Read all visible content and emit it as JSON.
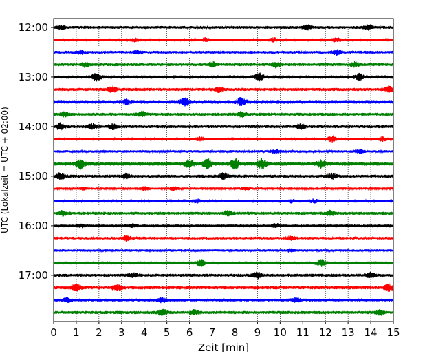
{
  "chart_data": {
    "type": "line",
    "title": "",
    "xlabel": "Zeit  [min]",
    "ylabel": "UTC (Lokalzeit = UTC + 02:00)",
    "xlim": [
      0,
      15
    ],
    "x_ticks": [
      "0",
      "1",
      "2",
      "3",
      "4",
      "5",
      "6",
      "7",
      "8",
      "9",
      "10",
      "11",
      "12",
      "13",
      "14",
      "15"
    ],
    "y_tick_labels": [
      "12:00",
      "13:00",
      "14:00",
      "15:00",
      "16:00",
      "17:00"
    ],
    "grid": "vertical dotted",
    "trace_colors": [
      "#000000",
      "#ff0000",
      "#0000ff",
      "#008000"
    ],
    "traces": [
      {
        "start": "12:00",
        "amplitude": 0.9,
        "events": [
          [
            0.3,
            1.2
          ],
          [
            11.2,
            1.5
          ],
          [
            13.9,
            1.8
          ]
        ]
      },
      {
        "start": "12:15",
        "amplitude": 0.8,
        "events": [
          [
            3.6,
            1.2
          ],
          [
            6.7,
            1.3
          ],
          [
            9.7,
            1.3
          ],
          [
            12.5,
            1.5
          ]
        ]
      },
      {
        "start": "12:30",
        "amplitude": 0.9,
        "events": [
          [
            1.2,
            1.1
          ],
          [
            3.7,
            1.3
          ],
          [
            12.5,
            1.8
          ]
        ]
      },
      {
        "start": "12:45",
        "amplitude": 1.0,
        "events": [
          [
            1.4,
            1.3
          ],
          [
            7.0,
            1.4
          ],
          [
            9.8,
            1.5
          ],
          [
            13.3,
            1.4
          ]
        ]
      },
      {
        "start": "13:00",
        "amplitude": 1.1,
        "events": [
          [
            1.9,
            2.0
          ],
          [
            9.1,
            1.8
          ],
          [
            13.5,
            1.6
          ]
        ]
      },
      {
        "start": "13:15",
        "amplitude": 1.0,
        "events": [
          [
            2.6,
            1.6
          ],
          [
            7.3,
            1.5
          ],
          [
            14.8,
            1.6
          ]
        ]
      },
      {
        "start": "13:30",
        "amplitude": 1.2,
        "events": [
          [
            5.8,
            1.8
          ],
          [
            8.3,
            2.0
          ],
          [
            3.2,
            1.3
          ]
        ]
      },
      {
        "start": "13:45",
        "amplitude": 1.0,
        "events": [
          [
            0.5,
            1.3
          ],
          [
            3.9,
            1.4
          ],
          [
            8.3,
            1.3
          ]
        ]
      },
      {
        "start": "14:00",
        "amplitude": 1.0,
        "events": [
          [
            0.3,
            2.0
          ],
          [
            1.7,
            1.4
          ],
          [
            2.6,
            1.5
          ],
          [
            10.9,
            1.6
          ]
        ]
      },
      {
        "start": "14:15",
        "amplitude": 0.8,
        "events": [
          [
            6.5,
            1.3
          ],
          [
            12.3,
            2.2
          ],
          [
            14.5,
            1.5
          ]
        ]
      },
      {
        "start": "14:30",
        "amplitude": 0.8,
        "events": [
          [
            9.8,
            1.3
          ],
          [
            13.5,
            1.3
          ]
        ]
      },
      {
        "start": "14:45",
        "amplitude": 1.2,
        "events": [
          [
            1.2,
            2.2
          ],
          [
            6.0,
            2.0
          ],
          [
            6.8,
            2.4
          ],
          [
            8.0,
            2.5
          ],
          [
            9.2,
            2.2
          ],
          [
            11.8,
            1.8
          ]
        ]
      },
      {
        "start": "15:00",
        "amplitude": 1.0,
        "events": [
          [
            0.3,
            2.0
          ],
          [
            3.2,
            1.5
          ],
          [
            7.5,
            1.8
          ],
          [
            12.3,
            1.4
          ]
        ]
      },
      {
        "start": "15:15",
        "amplitude": 0.7,
        "events": [
          [
            1.3,
            1.1
          ],
          [
            4.0,
            1.4
          ],
          [
            5.3,
            1.4
          ],
          [
            8.5,
            1.3
          ]
        ]
      },
      {
        "start": "15:30",
        "amplitude": 0.8,
        "events": [
          [
            6.3,
            1.3
          ],
          [
            10.5,
            1.2
          ],
          [
            11.5,
            1.3
          ]
        ]
      },
      {
        "start": "15:45",
        "amplitude": 1.0,
        "events": [
          [
            0.4,
            1.4
          ],
          [
            7.7,
            1.6
          ],
          [
            12.2,
            1.4
          ]
        ]
      },
      {
        "start": "16:00",
        "amplitude": 0.8,
        "events": [
          [
            1.2,
            1.1
          ],
          [
            3.5,
            1.2
          ],
          [
            9.8,
            1.4
          ]
        ]
      },
      {
        "start": "16:15",
        "amplitude": 0.9,
        "events": [
          [
            3.2,
            1.5
          ],
          [
            10.5,
            1.3
          ]
        ]
      },
      {
        "start": "16:30",
        "amplitude": 0.8,
        "events": [
          [
            10.5,
            1.2
          ]
        ]
      },
      {
        "start": "16:45",
        "amplitude": 1.0,
        "events": [
          [
            6.5,
            1.8
          ],
          [
            11.8,
            1.8
          ]
        ]
      },
      {
        "start": "17:00",
        "amplitude": 1.0,
        "events": [
          [
            3.5,
            1.3
          ],
          [
            9.0,
            1.6
          ],
          [
            14.0,
            1.5
          ]
        ]
      },
      {
        "start": "17:15",
        "amplitude": 1.1,
        "events": [
          [
            1.0,
            1.9
          ],
          [
            2.8,
            1.8
          ],
          [
            14.8,
            1.8
          ]
        ]
      },
      {
        "start": "17:30",
        "amplitude": 0.9,
        "events": [
          [
            0.6,
            1.3
          ],
          [
            4.8,
            1.6
          ],
          [
            10.7,
            1.3
          ]
        ]
      },
      {
        "start": "17:45",
        "amplitude": 1.0,
        "events": [
          [
            4.8,
            1.9
          ],
          [
            6.2,
            1.4
          ],
          [
            14.4,
            1.4
          ]
        ]
      }
    ]
  }
}
